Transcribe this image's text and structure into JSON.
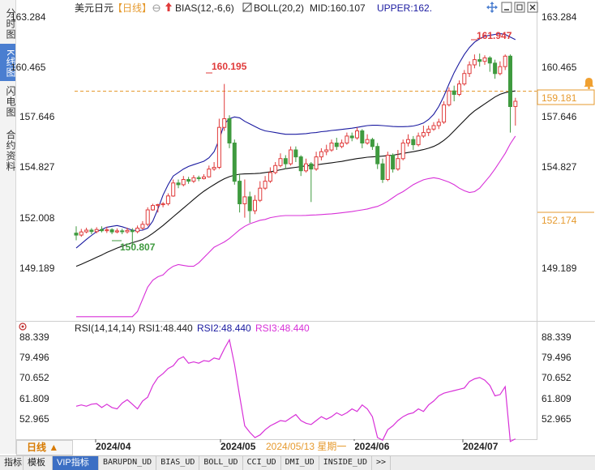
{
  "left_tabs": [
    {
      "label": "分时图",
      "active": false
    },
    {
      "label": "K线图",
      "active": true
    },
    {
      "label": "闪电图",
      "active": false
    },
    {
      "label": "合约资料",
      "active": false
    }
  ],
  "header": {
    "symbol": "美元日元",
    "period": "【日线】",
    "bias_label": "BIAS(12,-6,6)",
    "boll_label": "BOLL(20,2)",
    "mid_label": "MID:160.107",
    "upper_label": "UPPER:162."
  },
  "rsi_header": {
    "rsi_label": "RSI(14,14,14)",
    "rsi1_label": "RSI1:48.440",
    "rsi2_label": "RSI2:48.440",
    "rsi3_label": "RSI3:48.440"
  },
  "price_axis": {
    "ticks": [
      "163.284",
      "160.465",
      "157.646",
      "154.827",
      "152.008",
      "149.189"
    ],
    "current_price_label": "159.181",
    "lower_band_label": "152.174"
  },
  "rsi_axis": {
    "ticks": [
      "88.339",
      "79.496",
      "70.652",
      "61.809",
      "52.965"
    ]
  },
  "annotations": {
    "high_1": "160.195",
    "low_1": "150.807",
    "high_2": "161.947"
  },
  "x_axis": {
    "labels": [
      "2024/04",
      "2024/05",
      "2024/06",
      "2024/07"
    ],
    "cursor_date": "2024/05/13 星期一"
  },
  "period_button": {
    "label": "日线 ▲"
  },
  "bottom_tabs": [
    {
      "label": "指标",
      "active": false,
      "mono": false
    },
    {
      "label": "模板",
      "active": false,
      "mono": false
    },
    {
      "label": "VIP指标",
      "active": true,
      "mono": false
    },
    {
      "label": "BARUPDN_UD",
      "active": false,
      "mono": true
    },
    {
      "label": "BIAS_UD",
      "active": false,
      "mono": true
    },
    {
      "label": "BOLL_UD",
      "active": false,
      "mono": true
    },
    {
      "label": "CCI_UD",
      "active": false,
      "mono": true
    },
    {
      "label": "DMI_UD",
      "active": false,
      "mono": true
    },
    {
      "label": "INSIDE_UD",
      "active": false,
      "mono": true
    },
    {
      "label": ">>",
      "active": false,
      "mono": true
    }
  ],
  "colors": {
    "up": "#e03b3b",
    "down": "#3f9a3f",
    "upper_band": "#1a1aa0",
    "mid_band": "#111111",
    "lower_band": "#d830d8",
    "rsi": "#d830d8",
    "price_line": "#e69a2e",
    "accent_blue": "#2d5fc0"
  },
  "chart_data": {
    "type": "candlestick",
    "price_range": [
      146.37,
      164.1
    ],
    "rsi_range": [
      47.5,
      91.0
    ],
    "candles": [
      [
        151.61,
        151.5,
        152.0,
        151.2
      ],
      [
        151.5,
        151.68,
        151.85,
        151.4
      ],
      [
        151.68,
        151.78,
        151.92,
        151.6
      ],
      [
        151.78,
        151.7,
        151.9,
        151.55
      ],
      [
        151.7,
        151.82,
        151.95,
        151.6
      ],
      [
        151.82,
        151.75,
        152.0,
        151.65
      ],
      [
        151.75,
        151.8,
        151.98,
        151.62
      ],
      [
        151.8,
        151.68,
        151.9,
        151.55
      ],
      [
        151.68,
        151.74,
        151.88,
        151.6
      ],
      [
        151.74,
        151.69,
        151.86,
        151.55
      ],
      [
        151.69,
        151.77,
        151.92,
        151.58
      ],
      [
        151.77,
        151.7,
        151.9,
        150.81
      ],
      [
        151.7,
        151.9,
        152.05,
        151.6
      ],
      [
        151.9,
        152.12,
        152.3,
        151.8
      ],
      [
        152.12,
        152.95,
        153.1,
        152.0
      ],
      [
        152.95,
        153.2,
        153.3,
        152.9
      ],
      [
        153.2,
        153.25,
        153.3,
        152.8
      ],
      [
        153.25,
        153.3,
        153.4,
        153.1
      ],
      [
        153.3,
        153.75,
        153.9,
        153.2
      ],
      [
        153.75,
        154.5,
        154.7,
        153.7
      ],
      [
        154.5,
        154.4,
        154.7,
        154.2
      ],
      [
        154.4,
        154.7,
        154.9,
        154.3
      ],
      [
        154.7,
        154.6,
        154.85,
        154.45
      ],
      [
        154.6,
        154.8,
        154.95,
        154.5
      ],
      [
        154.8,
        154.75,
        154.92,
        154.6
      ],
      [
        154.75,
        154.85,
        155.0,
        154.7
      ],
      [
        154.85,
        155.3,
        155.5,
        154.8
      ],
      [
        155.3,
        155.4,
        155.7,
        155.2
      ],
      [
        155.4,
        157.7,
        158.2,
        155.3
      ],
      [
        157.7,
        158.2,
        160.2,
        157.5
      ],
      [
        158.2,
        156.8,
        158.4,
        156.5
      ],
      [
        156.8,
        154.6,
        157.0,
        154.4
      ],
      [
        154.6,
        153.3,
        155.0,
        152.8
      ],
      [
        153.3,
        153.7,
        154.7,
        152.5
      ],
      [
        153.7,
        152.9,
        154.0,
        152.2
      ],
      [
        152.9,
        153.5,
        153.8,
        152.7
      ],
      [
        153.5,
        154.2,
        154.6,
        153.4
      ],
      [
        154.2,
        154.6,
        154.9,
        154.1
      ],
      [
        154.6,
        155.1,
        155.4,
        154.5
      ],
      [
        155.1,
        155.5,
        155.7,
        155.0
      ],
      [
        155.5,
        155.9,
        156.2,
        155.4
      ],
      [
        155.9,
        155.6,
        156.1,
        155.3
      ],
      [
        155.6,
        156.4,
        156.6,
        155.5
      ],
      [
        156.4,
        156.0,
        156.6,
        155.7
      ],
      [
        156.0,
        155.2,
        156.1,
        154.9
      ],
      [
        155.2,
        155.6,
        155.9,
        155.1
      ],
      [
        155.6,
        155.3,
        155.7,
        153.4
      ],
      [
        155.3,
        156.0,
        156.3,
        155.2
      ],
      [
        156.0,
        156.3,
        156.5,
        155.8
      ],
      [
        156.3,
        156.4,
        156.7,
        156.1
      ],
      [
        156.4,
        156.8,
        157.0,
        156.3
      ],
      [
        156.8,
        156.6,
        157.1,
        156.4
      ],
      [
        156.6,
        156.8,
        157.0,
        156.5
      ],
      [
        156.8,
        157.2,
        157.4,
        156.7
      ],
      [
        157.2,
        157.1,
        157.4,
        156.9
      ],
      [
        157.1,
        157.5,
        157.7,
        157.0
      ],
      [
        157.5,
        156.8,
        157.6,
        156.5
      ],
      [
        156.8,
        157.0,
        157.3,
        156.7
      ],
      [
        157.0,
        156.6,
        157.1,
        156.4
      ],
      [
        156.6,
        155.6,
        156.8,
        155.3
      ],
      [
        155.6,
        154.7,
        155.9,
        154.5
      ],
      [
        154.7,
        156.1,
        156.3,
        154.6
      ],
      [
        156.1,
        155.3,
        156.2,
        155.1
      ],
      [
        155.3,
        155.9,
        156.4,
        155.2
      ],
      [
        155.9,
        156.8,
        157.0,
        155.8
      ],
      [
        156.8,
        157.0,
        157.3,
        156.6
      ],
      [
        157.0,
        156.7,
        157.2,
        156.4
      ],
      [
        156.7,
        157.2,
        157.4,
        156.6
      ],
      [
        157.2,
        157.4,
        157.8,
        157.1
      ],
      [
        157.4,
        157.6,
        157.8,
        157.2
      ],
      [
        157.6,
        157.8,
        158.0,
        157.5
      ],
      [
        157.8,
        158.0,
        158.2,
        157.6
      ],
      [
        158.0,
        159.0,
        159.2,
        157.9
      ],
      [
        159.0,
        159.8,
        160.0,
        158.9
      ],
      [
        159.8,
        159.6,
        160.1,
        159.2
      ],
      [
        159.6,
        160.2,
        160.4,
        159.5
      ],
      [
        160.2,
        160.8,
        161.0,
        160.1
      ],
      [
        160.8,
        161.3,
        161.5,
        160.6
      ],
      [
        161.3,
        161.6,
        161.9,
        161.1
      ],
      [
        161.6,
        161.5,
        161.95,
        161.2
      ],
      [
        161.5,
        161.7,
        161.85,
        161.3
      ],
      [
        161.7,
        161.4,
        161.8,
        160.9
      ],
      [
        161.4,
        160.8,
        161.6,
        160.5
      ],
      [
        160.8,
        161.2,
        161.5,
        160.7
      ],
      [
        161.2,
        161.8,
        161.9,
        161.0
      ],
      [
        161.8,
        158.9,
        161.9,
        157.4
      ],
      [
        158.9,
        159.2,
        159.4,
        157.8
      ]
    ],
    "boll_upper": [
      150.75,
      151.0,
      151.25,
      151.48,
      151.7,
      151.82,
      151.95,
      152.0,
      152.05,
      151.98,
      151.88,
      151.78,
      151.76,
      151.78,
      151.9,
      152.3,
      153.0,
      153.8,
      154.4,
      154.9,
      155.1,
      155.3,
      155.45,
      155.55,
      155.65,
      155.75,
      155.95,
      156.3,
      157.0,
      157.9,
      158.2,
      158.3,
      158.25,
      158.05,
      157.9,
      157.75,
      157.6,
      157.5,
      157.45,
      157.4,
      157.35,
      157.3,
      157.3,
      157.3,
      157.32,
      157.34,
      157.38,
      157.4,
      157.45,
      157.48,
      157.52,
      157.55,
      157.58,
      157.62,
      157.65,
      157.7,
      157.75,
      157.8,
      157.82,
      157.82,
      157.8,
      157.78,
      157.75,
      157.74,
      157.74,
      157.75,
      157.78,
      157.85,
      157.95,
      158.15,
      158.45,
      158.9,
      159.5,
      160.2,
      160.85,
      161.4,
      161.9,
      162.3,
      162.6,
      162.8,
      162.95,
      163.0,
      163.05,
      163.1,
      163.05,
      162.9,
      162.75
    ],
    "boll_mid": [
      149.7,
      149.82,
      149.95,
      150.08,
      150.22,
      150.35,
      150.5,
      150.62,
      150.75,
      150.86,
      150.97,
      151.06,
      151.15,
      151.24,
      151.4,
      151.6,
      151.82,
      152.05,
      152.3,
      152.55,
      152.8,
      153.05,
      153.3,
      153.55,
      153.8,
      154.02,
      154.22,
      154.4,
      154.58,
      154.74,
      154.86,
      154.95,
      155.0,
      155.02,
      155.03,
      155.04,
      155.06,
      155.1,
      155.14,
      155.2,
      155.26,
      155.32,
      155.36,
      155.4,
      155.44,
      155.48,
      155.5,
      155.54,
      155.58,
      155.62,
      155.66,
      155.7,
      155.74,
      155.8,
      155.85,
      155.9,
      155.94,
      155.98,
      156.0,
      156.02,
      156.04,
      156.07,
      156.1,
      156.15,
      156.2,
      156.25,
      156.3,
      156.36,
      156.42,
      156.5,
      156.6,
      156.75,
      156.95,
      157.2,
      157.5,
      157.8,
      158.1,
      158.4,
      158.65,
      158.85,
      159.05,
      159.25,
      159.45,
      159.6,
      159.7,
      159.75,
      159.8
    ],
    "boll_lower": [
      146.8,
      146.8,
      146.8,
      146.8,
      146.8,
      146.8,
      146.8,
      146.8,
      146.8,
      146.8,
      146.8,
      146.8,
      147.1,
      147.8,
      148.5,
      148.9,
      149.1,
      149.2,
      149.5,
      149.7,
      149.8,
      149.75,
      149.7,
      149.7,
      149.9,
      150.2,
      150.5,
      150.8,
      150.95,
      151.1,
      151.3,
      151.55,
      151.8,
      152.0,
      152.15,
      152.25,
      152.35,
      152.4,
      152.5,
      152.55,
      152.6,
      152.62,
      152.62,
      152.62,
      152.62,
      152.63,
      152.65,
      152.66,
      152.68,
      152.7,
      152.72,
      152.75,
      152.78,
      152.82,
      152.85,
      152.9,
      152.95,
      153.0,
      153.08,
      153.15,
      153.28,
      153.45,
      153.65,
      153.85,
      154.0,
      154.2,
      154.4,
      154.55,
      154.68,
      154.75,
      154.8,
      154.75,
      154.65,
      154.55,
      154.4,
      154.2,
      154.05,
      153.95,
      154.0,
      154.2,
      154.55,
      154.9,
      155.3,
      155.75,
      156.2,
      156.75,
      157.2
    ],
    "rsi": [
      62.0,
      62.5,
      62.0,
      62.8,
      63.0,
      61.5,
      62.8,
      61.5,
      61.0,
      63.2,
      64.5,
      62.8,
      61.0,
      64.0,
      65.5,
      70.0,
      73.0,
      74.5,
      76.5,
      77.5,
      80.0,
      81.0,
      78.5,
      79.0,
      78.5,
      79.5,
      79.2,
      80.5,
      80.0,
      84.0,
      87.5,
      78.0,
      66.0,
      54.5,
      52.0,
      50.0,
      51.0,
      53.0,
      54.5,
      55.5,
      56.5,
      56.2,
      57.5,
      58.8,
      56.5,
      55.5,
      55.0,
      56.5,
      58.0,
      57.0,
      58.0,
      59.5,
      58.5,
      59.5,
      61.0,
      60.0,
      62.5,
      61.0,
      58.0,
      50.0,
      49.0,
      53.0,
      54.5,
      56.5,
      58.0,
      59.0,
      59.5,
      61.0,
      60.0,
      62.5,
      64.0,
      66.0,
      67.0,
      67.5,
      68.0,
      68.5,
      69.0,
      71.5,
      72.5,
      73.0,
      72.0,
      70.0,
      66.0,
      66.5,
      69.5,
      48.5,
      49.5
    ]
  }
}
